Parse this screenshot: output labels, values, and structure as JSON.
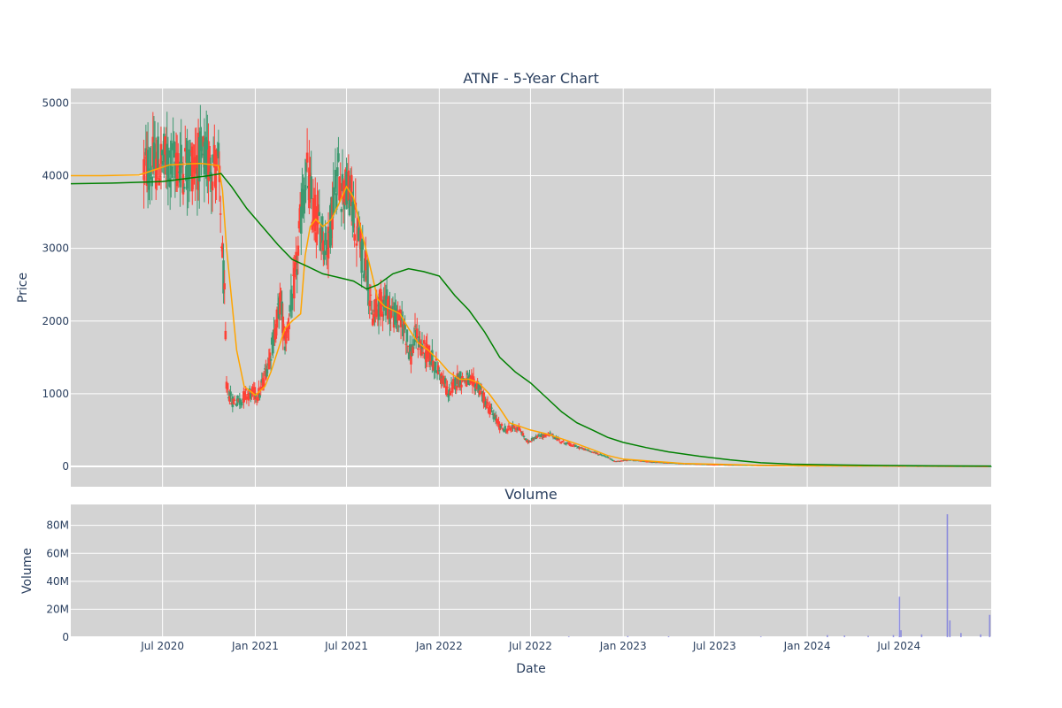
{
  "chart_data": [
    {
      "type": "candlestick",
      "title": "ATNF - 5-Year Chart",
      "ylabel": "Price",
      "ylim": [
        -280,
        5200
      ],
      "y_ticks": [
        0,
        1000,
        2000,
        3000,
        4000,
        5000
      ],
      "x_range": [
        "2020-01-01",
        "2024-12-31"
      ],
      "x_ticks": [
        {
          "date": "2020-07-01",
          "label": "Jul 2020"
        },
        {
          "date": "2021-01-01",
          "label": "Jan 2021"
        },
        {
          "date": "2021-07-01",
          "label": "Jul 2021"
        },
        {
          "date": "2022-01-01",
          "label": "Jan 2022"
        },
        {
          "date": "2022-07-01",
          "label": "Jul 2022"
        },
        {
          "date": "2023-01-01",
          "label": "Jan 2023"
        },
        {
          "date": "2023-07-01",
          "label": "Jul 2023"
        },
        {
          "date": "2024-01-01",
          "label": "Jan 2024"
        },
        {
          "date": "2024-07-01",
          "label": "Jul 2024"
        }
      ],
      "grid": true,
      "colors": {
        "increasing": "#3d9970",
        "decreasing": "#ff4136",
        "ma_short": "#ffa500",
        "ma_long": "#008000",
        "plot_bg": "#d3d3d3"
      },
      "close_path": [
        [
          "2020-05-25",
          4100
        ],
        [
          "2020-06-15",
          4150
        ],
        [
          "2020-07-05",
          4200
        ],
        [
          "2020-08-10",
          4150
        ],
        [
          "2020-09-15",
          4200
        ],
        [
          "2020-10-10",
          4180
        ],
        [
          "2020-10-20",
          4100
        ],
        [
          "2020-10-25",
          3300
        ],
        [
          "2020-11-01",
          2300
        ],
        [
          "2020-11-05",
          1100
        ],
        [
          "2020-11-15",
          900
        ],
        [
          "2020-12-01",
          900
        ],
        [
          "2020-12-15",
          1000
        ],
        [
          "2021-01-10",
          1000
        ],
        [
          "2021-01-25",
          1400
        ],
        [
          "2021-02-05",
          1700
        ],
        [
          "2021-02-20",
          2300
        ],
        [
          "2021-03-01",
          1700
        ],
        [
          "2021-03-15",
          2300
        ],
        [
          "2021-03-25",
          2800
        ],
        [
          "2021-04-05",
          3700
        ],
        [
          "2021-04-15",
          4000
        ],
        [
          "2021-04-25",
          3500
        ],
        [
          "2021-05-10",
          3300
        ],
        [
          "2021-05-25",
          3000
        ],
        [
          "2021-06-05",
          3700
        ],
        [
          "2021-06-15",
          4000
        ],
        [
          "2021-06-25",
          3800
        ],
        [
          "2021-07-10",
          3700
        ],
        [
          "2021-07-20",
          3300
        ],
        [
          "2021-08-01",
          2900
        ],
        [
          "2021-08-10",
          2800
        ],
        [
          "2021-08-20",
          2000
        ],
        [
          "2021-09-01",
          2200
        ],
        [
          "2021-09-15",
          2300
        ],
        [
          "2021-10-01",
          2100
        ],
        [
          "2021-10-15",
          2000
        ],
        [
          "2021-10-25",
          1900
        ],
        [
          "2021-11-05",
          1500
        ],
        [
          "2021-11-15",
          1800
        ],
        [
          "2021-12-01",
          1600
        ],
        [
          "2021-12-15",
          1500
        ],
        [
          "2022-01-01",
          1300
        ],
        [
          "2022-01-20",
          1000
        ],
        [
          "2022-02-05",
          1200
        ],
        [
          "2022-02-20",
          1200
        ],
        [
          "2022-03-05",
          1150
        ],
        [
          "2022-03-20",
          1100
        ],
        [
          "2022-04-01",
          900
        ],
        [
          "2022-04-15",
          750
        ],
        [
          "2022-05-01",
          550
        ],
        [
          "2022-05-15",
          500
        ],
        [
          "2022-06-01",
          550
        ],
        [
          "2022-06-10",
          500
        ],
        [
          "2022-06-25",
          330
        ],
        [
          "2022-07-10",
          400
        ],
        [
          "2022-07-25",
          420
        ],
        [
          "2022-08-10",
          440
        ],
        [
          "2022-09-01",
          340
        ],
        [
          "2022-10-01",
          270
        ],
        [
          "2022-11-01",
          200
        ],
        [
          "2022-12-01",
          130
        ],
        [
          "2022-12-15",
          70
        ],
        [
          "2023-01-15",
          90
        ],
        [
          "2023-03-01",
          60
        ],
        [
          "2023-05-01",
          40
        ],
        [
          "2023-07-01",
          25
        ],
        [
          "2023-10-01",
          15
        ],
        [
          "2024-01-01",
          10
        ],
        [
          "2024-06-01",
          6
        ],
        [
          "2024-12-31",
          3
        ]
      ],
      "series": [
        {
          "points": [
            [
              "2020-01-01",
              4000
            ],
            [
              "2020-03-01",
              4000
            ],
            [
              "2020-05-15",
              4010
            ],
            [
              "2020-06-15",
              4080
            ],
            [
              "2020-07-15",
              4150
            ],
            [
              "2020-08-15",
              4160
            ],
            [
              "2020-09-15",
              4170
            ],
            [
              "2020-10-20",
              4140
            ],
            [
              "2020-10-28",
              3800
            ],
            [
              "2020-11-05",
              3000
            ],
            [
              "2020-11-15",
              2300
            ],
            [
              "2020-11-25",
              1600
            ],
            [
              "2020-12-10",
              1100
            ],
            [
              "2021-01-01",
              980
            ],
            [
              "2021-01-20",
              1100
            ],
            [
              "2021-02-01",
              1300
            ],
            [
              "2021-02-15",
              1600
            ],
            [
              "2021-03-01",
              1900
            ],
            [
              "2021-03-15",
              2000
            ],
            [
              "2021-04-01",
              2100
            ],
            [
              "2021-04-10",
              2900
            ],
            [
              "2021-04-20",
              3300
            ],
            [
              "2021-05-01",
              3400
            ],
            [
              "2021-05-15",
              3300
            ],
            [
              "2021-06-01",
              3400
            ],
            [
              "2021-06-15",
              3600
            ],
            [
              "2021-07-01",
              3850
            ],
            [
              "2021-07-15",
              3700
            ],
            [
              "2021-08-01",
              3200
            ],
            [
              "2021-08-15",
              2800
            ],
            [
              "2021-09-01",
              2300
            ],
            [
              "2021-09-15",
              2200
            ],
            [
              "2021-10-01",
              2150
            ],
            [
              "2021-10-15",
              2100
            ],
            [
              "2021-11-01",
              1900
            ],
            [
              "2021-11-20",
              1700
            ],
            [
              "2021-12-10",
              1600
            ],
            [
              "2022-01-01",
              1450
            ],
            [
              "2022-01-20",
              1300
            ],
            [
              "2022-02-10",
              1200
            ],
            [
              "2022-03-01",
              1200
            ],
            [
              "2022-03-20",
              1150
            ],
            [
              "2022-04-10",
              1000
            ],
            [
              "2022-05-01",
              800
            ],
            [
              "2022-05-20",
              600
            ],
            [
              "2022-06-10",
              550
            ],
            [
              "2022-07-01",
              500
            ],
            [
              "2022-08-01",
              450
            ],
            [
              "2022-09-01",
              380
            ],
            [
              "2022-10-01",
              310
            ],
            [
              "2022-11-01",
              230
            ],
            [
              "2022-12-01",
              150
            ],
            [
              "2023-01-01",
              100
            ],
            [
              "2023-03-01",
              70
            ],
            [
              "2023-05-01",
              40
            ],
            [
              "2023-07-01",
              30
            ],
            [
              "2023-10-01",
              15
            ],
            [
              "2024-01-01",
              10
            ],
            [
              "2024-06-01",
              6
            ],
            [
              "2024-12-31",
              3
            ]
          ]
        },
        {
          "points": [
            [
              "2020-01-01",
              3890
            ],
            [
              "2020-04-01",
              3900
            ],
            [
              "2020-07-01",
              3920
            ],
            [
              "2020-10-01",
              4000
            ],
            [
              "2020-10-25",
              4030
            ],
            [
              "2020-11-15",
              3850
            ],
            [
              "2020-12-15",
              3550
            ],
            [
              "2021-01-15",
              3300
            ],
            [
              "2021-02-15",
              3050
            ],
            [
              "2021-03-15",
              2850
            ],
            [
              "2021-04-15",
              2750
            ],
            [
              "2021-05-15",
              2650
            ],
            [
              "2021-06-15",
              2600
            ],
            [
              "2021-07-15",
              2550
            ],
            [
              "2021-08-10",
              2440
            ],
            [
              "2021-09-01",
              2500
            ],
            [
              "2021-10-01",
              2650
            ],
            [
              "2021-11-01",
              2720
            ],
            [
              "2021-12-01",
              2680
            ],
            [
              "2022-01-01",
              2620
            ],
            [
              "2022-02-01",
              2350
            ],
            [
              "2022-03-01",
              2150
            ],
            [
              "2022-04-01",
              1850
            ],
            [
              "2022-05-01",
              1500
            ],
            [
              "2022-06-01",
              1300
            ],
            [
              "2022-07-01",
              1150
            ],
            [
              "2022-08-01",
              950
            ],
            [
              "2022-09-01",
              750
            ],
            [
              "2022-10-01",
              600
            ],
            [
              "2022-11-01",
              500
            ],
            [
              "2022-12-01",
              400
            ],
            [
              "2023-01-01",
              330
            ],
            [
              "2023-02-15",
              260
            ],
            [
              "2023-04-01",
              200
            ],
            [
              "2023-06-01",
              140
            ],
            [
              "2023-08-01",
              90
            ],
            [
              "2023-10-01",
              50
            ],
            [
              "2023-12-01",
              30
            ],
            [
              "2024-03-01",
              20
            ],
            [
              "2024-06-01",
              12
            ],
            [
              "2024-09-01",
              8
            ],
            [
              "2024-12-31",
              5
            ]
          ]
        }
      ]
    },
    {
      "type": "bar",
      "title": "Volume",
      "xlabel": "Date",
      "ylabel": "Volume",
      "ylim": [
        0,
        95
      ],
      "y_ticks": [
        {
          "value": 0,
          "label": "0"
        },
        {
          "value": 20,
          "label": "20M"
        },
        {
          "value": 40,
          "label": "40M"
        },
        {
          "value": 60,
          "label": "60M"
        },
        {
          "value": 80,
          "label": "80M"
        }
      ],
      "units": "millions",
      "bar_color": "#6d6ddf",
      "values": [
        [
          "2022-09-15",
          0.5
        ],
        [
          "2023-01-10",
          0.8
        ],
        [
          "2023-04-01",
          0.6
        ],
        [
          "2023-10-01",
          0.5
        ],
        [
          "2024-02-10",
          1.5
        ],
        [
          "2024-03-15",
          1.2
        ],
        [
          "2024-05-01",
          1.0
        ],
        [
          "2024-06-20",
          1.5
        ],
        [
          "2024-07-02",
          29
        ],
        [
          "2024-07-05",
          5
        ],
        [
          "2024-08-15",
          2
        ],
        [
          "2024-10-05",
          88
        ],
        [
          "2024-10-10",
          12
        ],
        [
          "2024-11-01",
          3
        ],
        [
          "2024-12-10",
          2
        ],
        [
          "2024-12-28",
          16
        ]
      ]
    }
  ]
}
